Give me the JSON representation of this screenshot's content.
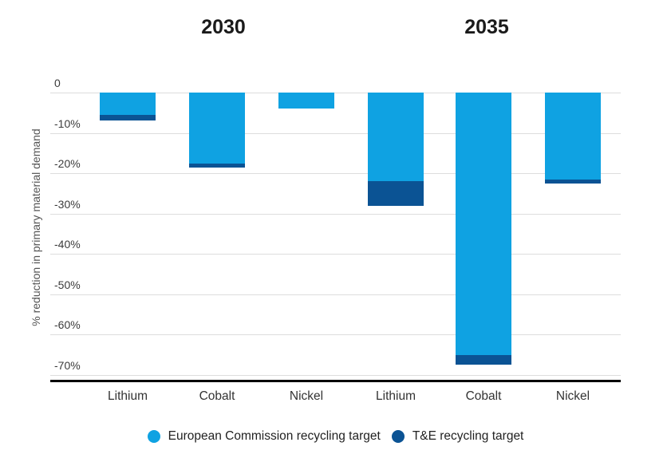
{
  "chart_data": {
    "type": "bar",
    "orientation": "vertical-downward",
    "group_titles": [
      "2030",
      "2035"
    ],
    "categories": [
      "Lithium",
      "Cobalt",
      "Nickel",
      "Lithium",
      "Cobalt",
      "Nickel"
    ],
    "category_groups": [
      "2030",
      "2030",
      "2030",
      "2035",
      "2035",
      "2035"
    ],
    "series": [
      {
        "name": "European Commission recycling target",
        "color": "#0fa2e2",
        "values": [
          -5.5,
          -17.5,
          -4,
          -22,
          -65,
          -21.5
        ]
      },
      {
        "name": "T&E recycling target",
        "color": "#0b5394",
        "values": [
          -7,
          -18.5,
          -4,
          -28,
          -67.5,
          -22.5
        ]
      }
    ],
    "title": "",
    "xlabel": "",
    "ylabel": "% reduction in primary material demand",
    "ytick_labels": [
      "0",
      "-10%",
      "-20%",
      "-30%",
      "-40%",
      "-50%",
      "-60%",
      "-70%"
    ],
    "ytick_values": [
      0,
      -10,
      -20,
      -30,
      -40,
      -50,
      -60,
      -70
    ],
    "ylim": [
      -70,
      0
    ],
    "grid": true,
    "gridline_color": "#dddddd",
    "axis_line_color": "#000000",
    "legend_position": "bottom"
  }
}
